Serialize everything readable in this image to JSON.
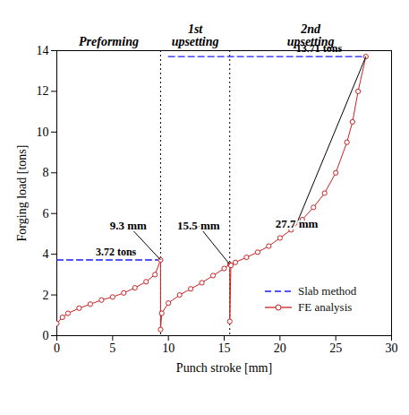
{
  "chart_data": {
    "type": "line",
    "x_label": "Punch stroke [mm]",
    "y_label": "Forging load [tons]",
    "xlim": [
      0,
      30
    ],
    "xticks": [
      0,
      5,
      10,
      15,
      20,
      25,
      30
    ],
    "ylim": [
      0,
      14
    ],
    "yticks": [
      0,
      2,
      4,
      6,
      8,
      10,
      12,
      14
    ],
    "grid": false,
    "legend": "lower right",
    "stages": [
      "Preforming",
      "1st upsetting",
      "2nd upsetting"
    ],
    "stage_boundaries": [
      9.3,
      15.5
    ],
    "series": [
      {
        "name": "Slab method",
        "color": "#1a1aff",
        "line_style": "dashed",
        "marker": "none",
        "x": [
          0,
          9.3,
          10,
          10,
          27.7
        ],
        "values": [
          3.72,
          3.72,
          null,
          13.71,
          13.71
        ]
      },
      {
        "name": "FE analysis",
        "color": "#cc2222",
        "line_style": "solid",
        "marker": "open_circle",
        "x": [
          0,
          0.5,
          1,
          2,
          3,
          4,
          5,
          6,
          7,
          8,
          8.8,
          9.3,
          9.3,
          9.4,
          10,
          11,
          12,
          13,
          14,
          15,
          15.5,
          15.5,
          15.6,
          16,
          17,
          18,
          19,
          20,
          21,
          22,
          23,
          24,
          25,
          26,
          26.5,
          27,
          27.7
        ],
        "values": [
          0.6,
          0.9,
          1.1,
          1.35,
          1.55,
          1.75,
          1.9,
          2.1,
          2.35,
          2.65,
          3.0,
          3.72,
          0.3,
          1.1,
          1.6,
          2.0,
          2.3,
          2.6,
          2.95,
          3.3,
          3.5,
          0.7,
          3.45,
          3.6,
          3.85,
          4.1,
          4.4,
          4.8,
          5.2,
          5.7,
          6.3,
          7.0,
          8.0,
          9.5,
          10.5,
          12.0,
          13.71
        ]
      }
    ],
    "load_labels": [
      {
        "text": "3.72 tons",
        "x": 5.3,
        "y": 3.72
      },
      {
        "text": "13.71 tons",
        "x": 23.5,
        "y": 13.71
      }
    ],
    "stroke_labels": [
      {
        "text": "9.3 mm",
        "x": 9.3,
        "y": 3.72
      },
      {
        "text": "15.5 mm",
        "x": 15.5,
        "y": 3.5
      },
      {
        "text": "27.7 mm",
        "x": 27.7,
        "y": 13.71
      }
    ]
  }
}
